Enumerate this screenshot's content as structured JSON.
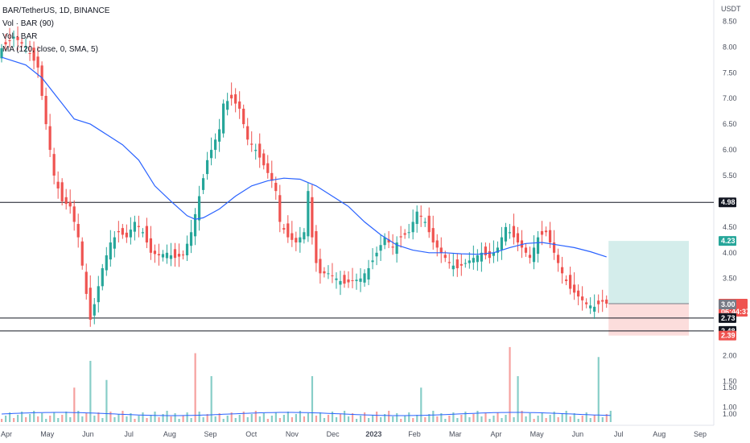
{
  "legend": {
    "symbol": "BAR/TetherUS, 1D, BINANCE",
    "vol": "Vol · BAR (90)",
    "vol2": "Vol · BAR",
    "ma": "MA (120, close, 0, SMA, 5)"
  },
  "chart_data": {
    "type": "candlestick",
    "title": "BAR/TetherUS, 1D, BINANCE",
    "currency": "USDT",
    "y_ticks": [
      "8.50",
      "8.00",
      "7.50",
      "7.00",
      "6.50",
      "6.00",
      "5.50",
      "5.00",
      "4.50",
      "4.00",
      "3.50",
      "3.00",
      "2.50",
      "2.00",
      "1.50",
      "1.00"
    ],
    "x_ticks": [
      "Apr",
      "May",
      "Jun",
      "Jul",
      "Aug",
      "Sep",
      "Oct",
      "Nov",
      "Dec",
      "2023",
      "Feb",
      "Mar",
      "Apr",
      "May",
      "Jun",
      "Jul",
      "Aug",
      "Sep"
    ],
    "ylim": [
      0.85,
      8.6
    ],
    "horizontal_levels": [
      4.98,
      2.73,
      2.48
    ],
    "price_tags": [
      {
        "label": "4.98",
        "bg": "#131722",
        "color": "#ffffff",
        "value": 4.98
      },
      {
        "label": "4.23",
        "bg": "#26a69a",
        "color": "#ffffff",
        "value": 4.23
      },
      {
        "label": "3.01",
        "sub": "06:44:37",
        "bg": "#ef5350",
        "color": "#ffffff",
        "value": 3.01
      },
      {
        "label": "3.00",
        "bg": "#787b86",
        "color": "#ffffff",
        "value": 2.995
      },
      {
        "label": "2.73",
        "bg": "#131722",
        "color": "#ffffff",
        "value": 2.73
      },
      {
        "label": "2.48",
        "bg": "#131722",
        "color": "#ffffff",
        "value": 2.48
      },
      {
        "label": "2.39",
        "bg": "#ef5350",
        "color": "#ffffff",
        "value": 2.39
      }
    ],
    "position": {
      "entry": 3.01,
      "target": 4.23,
      "stop": 2.39
    },
    "price_path": [
      [
        0,
        7.9
      ],
      [
        4,
        8.2
      ],
      [
        7,
        8.0
      ],
      [
        10,
        7.6
      ],
      [
        12,
        6.5
      ],
      [
        14,
        5.5
      ],
      [
        16,
        5.0
      ],
      [
        18,
        4.9
      ],
      [
        20,
        4.3
      ],
      [
        22,
        3.2
      ],
      [
        23,
        2.7
      ],
      [
        24,
        3.0
      ],
      [
        26,
        3.7
      ],
      [
        28,
        4.2
      ],
      [
        30,
        4.4
      ],
      [
        32,
        4.3
      ],
      [
        34,
        4.6
      ],
      [
        36,
        4.4
      ],
      [
        38,
        4.0
      ],
      [
        40,
        3.95
      ],
      [
        42,
        4.0
      ],
      [
        44,
        3.9
      ],
      [
        46,
        3.95
      ],
      [
        48,
        4.4
      ],
      [
        50,
        5.1
      ],
      [
        52,
        5.8
      ],
      [
        54,
        6.2
      ],
      [
        55,
        6.4
      ],
      [
        56,
        6.9
      ],
      [
        58,
        7.0
      ],
      [
        60,
        6.8
      ],
      [
        62,
        6.2
      ],
      [
        64,
        6.0
      ],
      [
        66,
        5.7
      ],
      [
        68,
        5.4
      ],
      [
        69,
        5.2
      ],
      [
        70,
        4.6
      ],
      [
        72,
        4.3
      ],
      [
        74,
        4.2
      ],
      [
        76,
        4.4
      ],
      [
        77,
        5.2
      ],
      [
        78,
        4.3
      ],
      [
        79,
        3.8
      ],
      [
        80,
        3.6
      ],
      [
        82,
        3.6
      ],
      [
        84,
        3.5
      ],
      [
        86,
        3.4
      ],
      [
        88,
        3.45
      ],
      [
        90,
        3.5
      ],
      [
        92,
        3.7
      ],
      [
        94,
        4.0
      ],
      [
        96,
        4.3
      ],
      [
        98,
        4.1
      ],
      [
        100,
        4.3
      ],
      [
        102,
        4.4
      ],
      [
        104,
        4.8
      ],
      [
        106,
        4.6
      ],
      [
        108,
        4.2
      ],
      [
        110,
        4.0
      ],
      [
        112,
        3.8
      ],
      [
        114,
        3.7
      ],
      [
        116,
        3.8
      ],
      [
        118,
        3.9
      ],
      [
        120,
        4.0
      ],
      [
        122,
        3.9
      ],
      [
        124,
        4.1
      ],
      [
        126,
        4.5
      ],
      [
        128,
        4.3
      ],
      [
        130,
        4.1
      ],
      [
        132,
        3.9
      ],
      [
        134,
        4.3
      ],
      [
        136,
        4.4
      ],
      [
        138,
        4.0
      ],
      [
        140,
        3.6
      ],
      [
        142,
        3.3
      ],
      [
        144,
        3.15
      ],
      [
        146,
        3.0
      ],
      [
        148,
        2.95
      ],
      [
        150,
        3.05
      ],
      [
        151,
        3.01
      ]
    ],
    "ma_path": [
      [
        0,
        7.8
      ],
      [
        6,
        7.65
      ],
      [
        10,
        7.4
      ],
      [
        14,
        7.0
      ],
      [
        18,
        6.6
      ],
      [
        22,
        6.5
      ],
      [
        26,
        6.3
      ],
      [
        30,
        6.1
      ],
      [
        34,
        5.8
      ],
      [
        38,
        5.3
      ],
      [
        42,
        5.0
      ],
      [
        46,
        4.72
      ],
      [
        48,
        4.65
      ],
      [
        50,
        4.68
      ],
      [
        54,
        4.85
      ],
      [
        58,
        5.1
      ],
      [
        62,
        5.3
      ],
      [
        66,
        5.4
      ],
      [
        70,
        5.45
      ],
      [
        74,
        5.43
      ],
      [
        78,
        5.3
      ],
      [
        82,
        5.1
      ],
      [
        86,
        4.9
      ],
      [
        90,
        4.6
      ],
      [
        94,
        4.35
      ],
      [
        98,
        4.15
      ],
      [
        102,
        4.05
      ],
      [
        106,
        4.0
      ],
      [
        110,
        4.0
      ],
      [
        114,
        3.98
      ],
      [
        118,
        3.97
      ],
      [
        122,
        4.0
      ],
      [
        126,
        4.1
      ],
      [
        130,
        4.18
      ],
      [
        134,
        4.2
      ],
      [
        138,
        4.15
      ],
      [
        142,
        4.1
      ],
      [
        146,
        4.02
      ],
      [
        150,
        3.92
      ]
    ],
    "volume_spikes": [
      {
        "x": 18,
        "h": 0.45
      },
      {
        "x": 22,
        "h": 0.8
      },
      {
        "x": 26,
        "h": 0.55
      },
      {
        "x": 48,
        "h": 0.9
      },
      {
        "x": 52,
        "h": 0.6
      },
      {
        "x": 77,
        "h": 0.6
      },
      {
        "x": 104,
        "h": 0.45
      },
      {
        "x": 126,
        "h": 0.98
      },
      {
        "x": 128,
        "h": 0.6
      },
      {
        "x": 148,
        "h": 0.85
      }
    ],
    "volume_y_ticks": [
      "1.50",
      "1.00"
    ],
    "total_days": 175
  }
}
